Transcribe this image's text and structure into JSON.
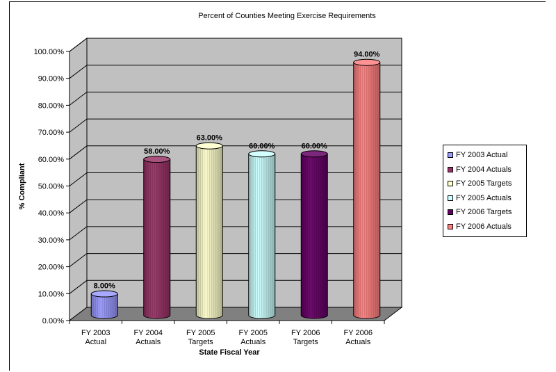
{
  "chart_data": {
    "type": "bar",
    "title": "Percent of Counties Meeting Exercise Requirements",
    "xlabel": "State Fiscal Year",
    "ylabel": "% Compliant",
    "ylim": [
      0,
      100
    ],
    "y_ticks": [
      "0.00%",
      "10.00%",
      "20.00%",
      "30.00%",
      "40.00%",
      "50.00%",
      "60.00%",
      "70.00%",
      "80.00%",
      "90.00%",
      "100.00%"
    ],
    "categories": [
      [
        "FY 2003",
        "Actual"
      ],
      [
        "FY 2004",
        "Actuals"
      ],
      [
        "FY 2005",
        "Targets"
      ],
      [
        "FY 2005",
        "Actuals"
      ],
      [
        "FY 2006",
        "Targets"
      ],
      [
        "FY 2006",
        "Actuals"
      ]
    ],
    "series": [
      {
        "name": "FY 2003 Actual",
        "value": 8,
        "label": "8.00%",
        "color": "#9999ff"
      },
      {
        "name": "FY 2004 Actuals",
        "value": 58,
        "label": "58.00%",
        "color": "#993366"
      },
      {
        "name": "FY 2005 Targets",
        "value": 63,
        "label": "63.00%",
        "color": "#ffffcc"
      },
      {
        "name": "FY 2005 Actuals",
        "value": 60,
        "label": "60.00%",
        "color": "#ccffff"
      },
      {
        "name": "FY 2006 Targets",
        "value": 60,
        "label": "60.00%",
        "color": "#660066"
      },
      {
        "name": "FY 2006 Actuals",
        "value": 94,
        "label": "94.00%",
        "color": "#ff8080"
      }
    ],
    "grid": true,
    "legend": "right",
    "wall_color": "#c0c0c0",
    "floor_color": "#808080"
  }
}
